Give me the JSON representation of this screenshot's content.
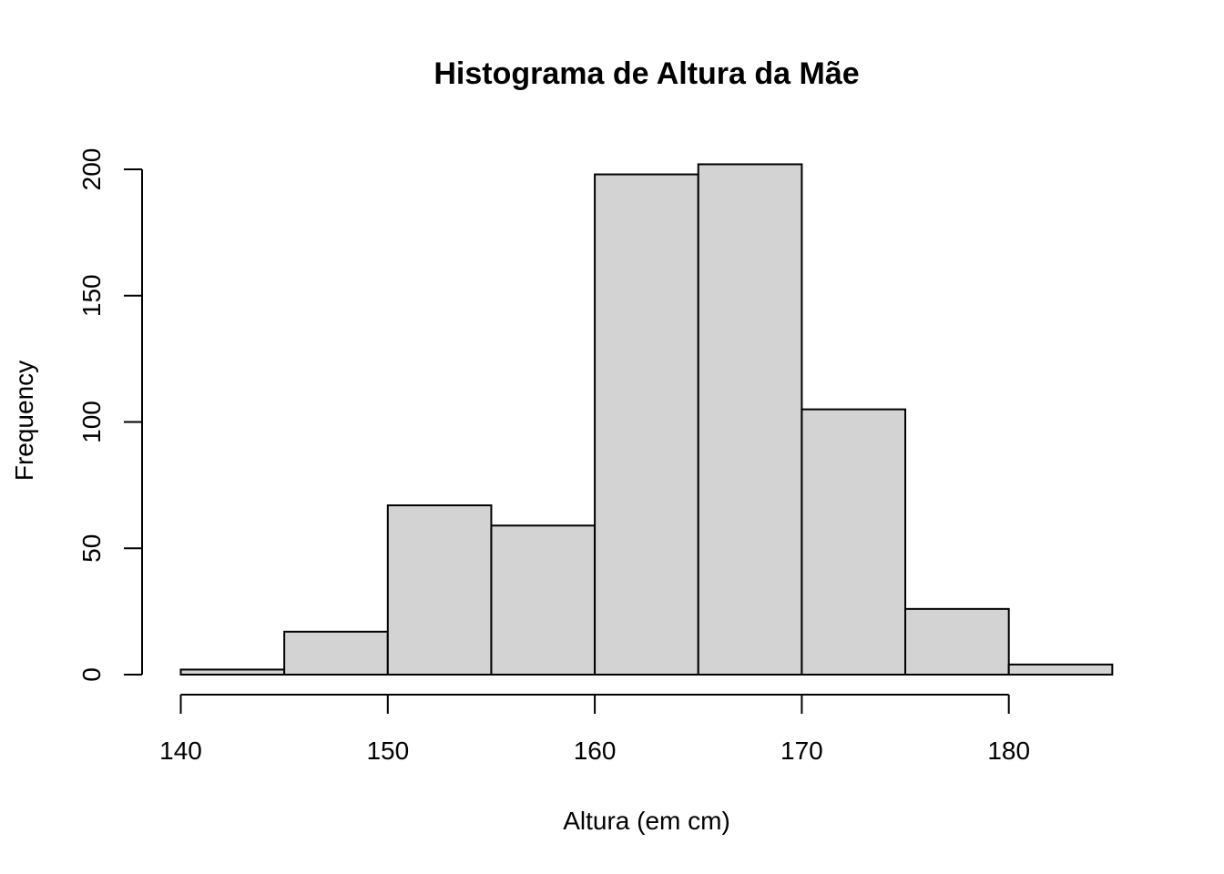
{
  "chart_data": {
    "type": "bar",
    "subtype": "histogram",
    "title": "Histograma de Altura da Mãe",
    "xlabel": "Altura (em cm)",
    "ylabel": "Frequency",
    "bins": [
      {
        "start": 140,
        "end": 145,
        "count": 2
      },
      {
        "start": 145,
        "end": 150,
        "count": 17
      },
      {
        "start": 150,
        "end": 155,
        "count": 67
      },
      {
        "start": 155,
        "end": 160,
        "count": 59
      },
      {
        "start": 160,
        "end": 165,
        "count": 198
      },
      {
        "start": 165,
        "end": 170,
        "count": 202
      },
      {
        "start": 170,
        "end": 175,
        "count": 105
      },
      {
        "start": 175,
        "end": 180,
        "count": 26
      },
      {
        "start": 180,
        "end": 185,
        "count": 4
      }
    ],
    "x_ticks": [
      140,
      150,
      160,
      170,
      180
    ],
    "x_tick_labels": [
      "140",
      "150",
      "160",
      "170",
      "180"
    ],
    "y_ticks": [
      0,
      50,
      100,
      150,
      200
    ],
    "y_tick_labels": [
      "0",
      "50",
      "100",
      "150",
      "200"
    ],
    "xlim": [
      140,
      185
    ],
    "ylim": [
      0,
      200
    ],
    "grid": false,
    "legend": "none",
    "bar_color": "#d3d3d3",
    "bar_border_color": "#000000"
  }
}
